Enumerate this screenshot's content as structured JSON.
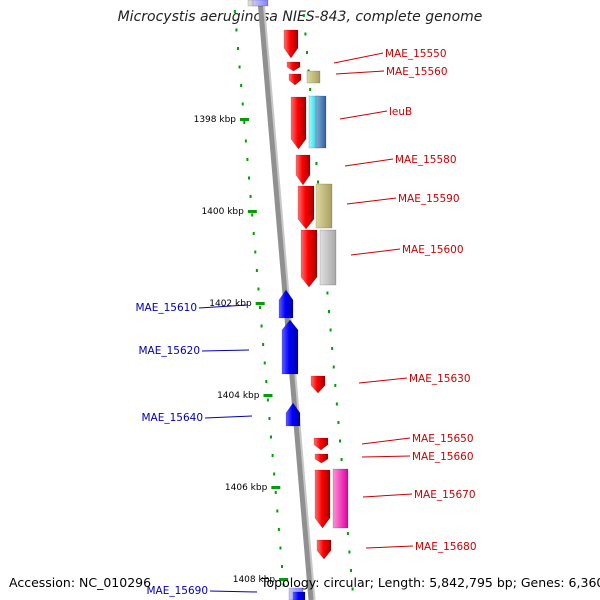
{
  "title": "Microcystis aeruginosa NIES-843, complete genome",
  "footer": {
    "accession": "Accession: NC_010296",
    "meta": "Topology: circular; Length: 5,842,795 bp; Genes: 6,360"
  },
  "colors": {
    "forward": "#e00000",
    "reverse": "#0000ee",
    "forward_label": "#cc0000",
    "reverse_label": "#0000bb",
    "tick": "#00a000",
    "axis": "#909090"
  },
  "ticks": [
    "1398 kbp",
    "1400 kbp",
    "1402 kbp",
    "1404 kbp",
    "1406 kbp",
    "1408 kbp"
  ],
  "forward_genes": [
    "MAE_15550",
    "MAE_15560",
    "leuB",
    "MAE_15580",
    "MAE_15590",
    "MAE_15600",
    "MAE_15630",
    "MAE_15650",
    "MAE_15660",
    "MAE_15670",
    "MAE_15680"
  ],
  "reverse_genes": [
    "MAE_15610",
    "MAE_15620",
    "MAE_15640",
    "MAE_15690"
  ]
}
